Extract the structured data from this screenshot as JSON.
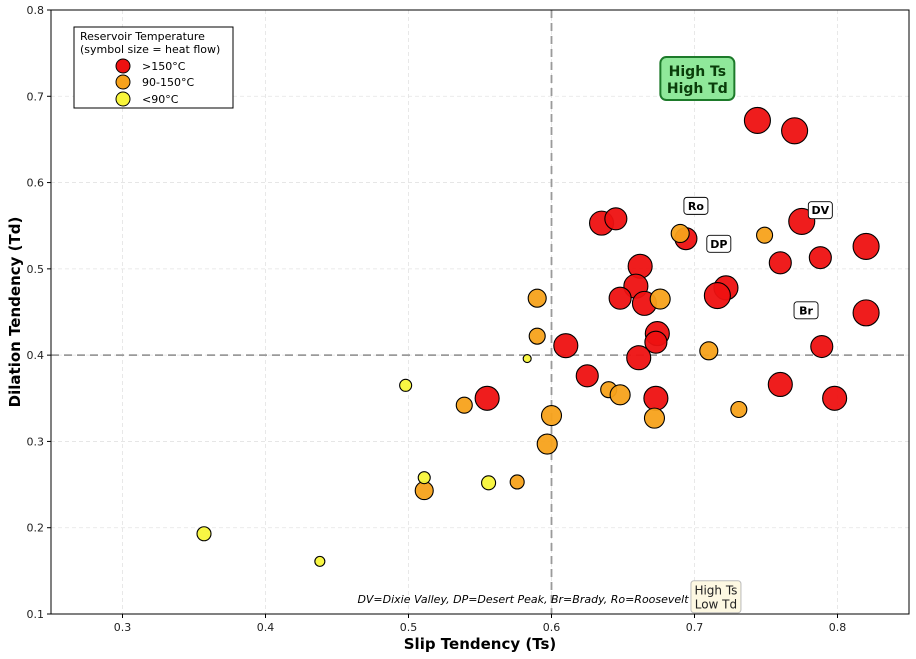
{
  "chart_data": {
    "type": "scatter",
    "title": "",
    "xlabel": "Slip Tendency (Ts)",
    "ylabel": "Dilation Tendency (Td)",
    "xlim": [
      0.25,
      0.85
    ],
    "ylim": [
      0.1,
      0.8
    ],
    "xticks": [
      "0.3",
      "0.4",
      "0.5",
      "0.6",
      "0.7",
      "0.8"
    ],
    "yticks": [
      "0.1",
      "0.2",
      "0.3",
      "0.4",
      "0.5",
      "0.6",
      "0.7",
      "0.8"
    ],
    "grid": true,
    "threshold_x": 0.6,
    "threshold_y": 0.4,
    "legend": {
      "title_line1": "Reservoir Temperature",
      "title_line2": "(symbol size = heat flow)",
      "location": "top-left",
      "entries": [
        {
          "label": ">150°C",
          "color": "#ee1111"
        },
        {
          "label": "90-150°C",
          "color": "#f7a21b"
        },
        {
          "label": "<90°C",
          "color": "#f8f53a"
        }
      ]
    },
    "series": [
      {
        "name": ">150°C",
        "color": "#ee1111",
        "points": [
          {
            "x": 0.744,
            "y": 0.672,
            "size": 13
          },
          {
            "x": 0.77,
            "y": 0.66,
            "size": 13
          },
          {
            "x": 0.635,
            "y": 0.553,
            "size": 12
          },
          {
            "x": 0.645,
            "y": 0.558,
            "size": 11
          },
          {
            "x": 0.775,
            "y": 0.555,
            "size": 13
          },
          {
            "x": 0.694,
            "y": 0.535,
            "size": 11
          },
          {
            "x": 0.82,
            "y": 0.526,
            "size": 13
          },
          {
            "x": 0.788,
            "y": 0.513,
            "size": 11
          },
          {
            "x": 0.76,
            "y": 0.507,
            "size": 11
          },
          {
            "x": 0.662,
            "y": 0.503,
            "size": 12
          },
          {
            "x": 0.659,
            "y": 0.48,
            "size": 12
          },
          {
            "x": 0.722,
            "y": 0.478,
            "size": 12
          },
          {
            "x": 0.716,
            "y": 0.469,
            "size": 13
          },
          {
            "x": 0.648,
            "y": 0.466,
            "size": 11
          },
          {
            "x": 0.665,
            "y": 0.46,
            "size": 12
          },
          {
            "x": 0.82,
            "y": 0.449,
            "size": 13
          },
          {
            "x": 0.674,
            "y": 0.425,
            "size": 12
          },
          {
            "x": 0.673,
            "y": 0.415,
            "size": 11
          },
          {
            "x": 0.61,
            "y": 0.411,
            "size": 12
          },
          {
            "x": 0.789,
            "y": 0.41,
            "size": 11
          },
          {
            "x": 0.661,
            "y": 0.397,
            "size": 12
          },
          {
            "x": 0.625,
            "y": 0.376,
            "size": 11
          },
          {
            "x": 0.76,
            "y": 0.366,
            "size": 12
          },
          {
            "x": 0.555,
            "y": 0.35,
            "size": 12
          },
          {
            "x": 0.673,
            "y": 0.35,
            "size": 12
          },
          {
            "x": 0.798,
            "y": 0.35,
            "size": 12
          }
        ]
      },
      {
        "name": "90-150°C",
        "color": "#f7a21b",
        "points": [
          {
            "x": 0.69,
            "y": 0.541,
            "size": 9
          },
          {
            "x": 0.749,
            "y": 0.539,
            "size": 8
          },
          {
            "x": 0.59,
            "y": 0.466,
            "size": 9
          },
          {
            "x": 0.676,
            "y": 0.465,
            "size": 10
          },
          {
            "x": 0.59,
            "y": 0.422,
            "size": 8
          },
          {
            "x": 0.71,
            "y": 0.405,
            "size": 9
          },
          {
            "x": 0.64,
            "y": 0.36,
            "size": 8
          },
          {
            "x": 0.648,
            "y": 0.354,
            "size": 10
          },
          {
            "x": 0.539,
            "y": 0.342,
            "size": 8
          },
          {
            "x": 0.731,
            "y": 0.337,
            "size": 8
          },
          {
            "x": 0.6,
            "y": 0.33,
            "size": 10
          },
          {
            "x": 0.672,
            "y": 0.327,
            "size": 10
          },
          {
            "x": 0.597,
            "y": 0.297,
            "size": 10
          },
          {
            "x": 0.576,
            "y": 0.253,
            "size": 7
          },
          {
            "x": 0.511,
            "y": 0.243,
            "size": 9
          }
        ]
      },
      {
        "name": "<90°C",
        "color": "#f8f53a",
        "points": [
          {
            "x": 0.583,
            "y": 0.396,
            "size": 4
          },
          {
            "x": 0.498,
            "y": 0.365,
            "size": 6
          },
          {
            "x": 0.511,
            "y": 0.258,
            "size": 6
          },
          {
            "x": 0.556,
            "y": 0.252,
            "size": 7
          },
          {
            "x": 0.357,
            "y": 0.193,
            "size": 7
          },
          {
            "x": 0.438,
            "y": 0.161,
            "size": 5
          }
        ]
      }
    ],
    "site_labels": [
      {
        "text": "Ro",
        "x": 0.701,
        "y": 0.573
      },
      {
        "text": "DV",
        "x": 0.788,
        "y": 0.568
      },
      {
        "text": "DP",
        "x": 0.717,
        "y": 0.529
      },
      {
        "text": "Br",
        "x": 0.778,
        "y": 0.452
      }
    ],
    "quadrant_labels": [
      {
        "line1": "High Ts",
        "line2": "High Td",
        "x": 0.702,
        "y": 0.72,
        "style": "big"
      },
      {
        "line1": "High Ts",
        "line2": "Low Td",
        "x": 0.715,
        "y": 0.12,
        "style": "small"
      }
    ],
    "footnote": "DV=Dixie Valley, DP=Desert Peak, Br=Brady, Ro=Roosevelt"
  }
}
